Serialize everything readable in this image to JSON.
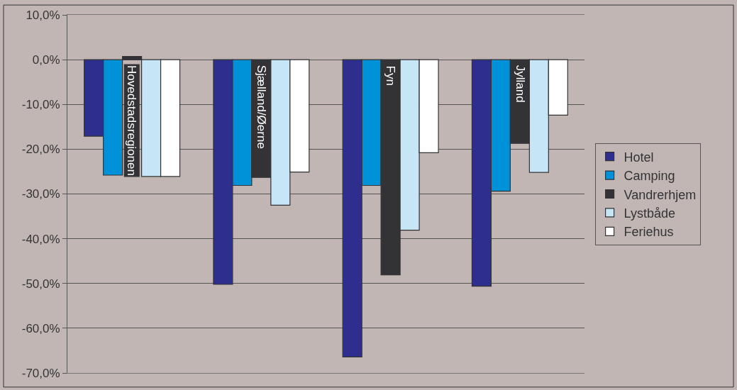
{
  "chart_data": {
    "type": "bar",
    "categories": [
      "Hovedstadsregionen",
      "Sjælland/Øerne",
      "Fyn",
      "Jylland"
    ],
    "series": [
      {
        "name": "Hotel",
        "color": "#2e2e8f",
        "values": [
          -17.1,
          -50.2,
          -66.4,
          -50.6
        ]
      },
      {
        "name": "Camping",
        "color": "#0092d8",
        "values": [
          -25.8,
          -28.1,
          -28.1,
          -29.4
        ]
      },
      {
        "name": "Vandrerhjem",
        "color": "#333336",
        "values": [
          0.7,
          -26.3,
          -48.1,
          -18.7
        ]
      },
      {
        "name": "Lystbåde",
        "color": "#c6e6f7",
        "values": [
          -26.1,
          -32.5,
          -38.1,
          -25.2
        ]
      },
      {
        "name": "Feriehus",
        "color": "#ffffff",
        "values": [
          -26.1,
          -25.1,
          -20.8,
          -12.4
        ]
      }
    ],
    "ylim": [
      -70,
      10
    ],
    "yticks": [
      {
        "value": 10,
        "label": "10,0%"
      },
      {
        "value": 0,
        "label": "0,0%"
      },
      {
        "value": -10,
        "label": "-10,0%"
      },
      {
        "value": -20,
        "label": "-20,0%"
      },
      {
        "value": -30,
        "label": "-30,0%"
      },
      {
        "value": -40,
        "label": "-40,0%"
      },
      {
        "value": -50,
        "label": "-50,0%"
      },
      {
        "value": -60,
        "label": "-60,0%"
      },
      {
        "value": -70,
        "label": "-70,0%"
      }
    ],
    "grid": "y",
    "legend": "right"
  }
}
